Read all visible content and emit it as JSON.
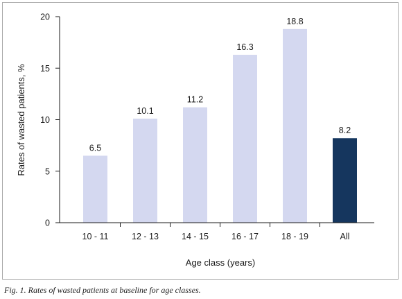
{
  "chart_data": {
    "type": "bar",
    "categories": [
      "10 - 11",
      "12 - 13",
      "14 - 15",
      "16 - 17",
      "18 - 19",
      "All"
    ],
    "values": [
      6.5,
      10.1,
      11.2,
      16.3,
      18.8,
      8.2
    ],
    "data_labels": [
      "6.5",
      "10.1",
      "11.2",
      "16.3",
      "18.8",
      "8.2"
    ],
    "xlabel": "Age class (years)",
    "ylabel": "Rates of wasted patients, %",
    "ylim": [
      0,
      20
    ],
    "yticks": [
      0,
      5,
      10,
      15,
      20
    ],
    "grid": false,
    "colors": {
      "bar": "#d4d8f0",
      "highlight_bar": "#15365e",
      "axis": "#1a1a1a"
    },
    "highlight_category": "All"
  },
  "caption": "Fig. 1. Rates of wasted patients at baseline for age classes."
}
